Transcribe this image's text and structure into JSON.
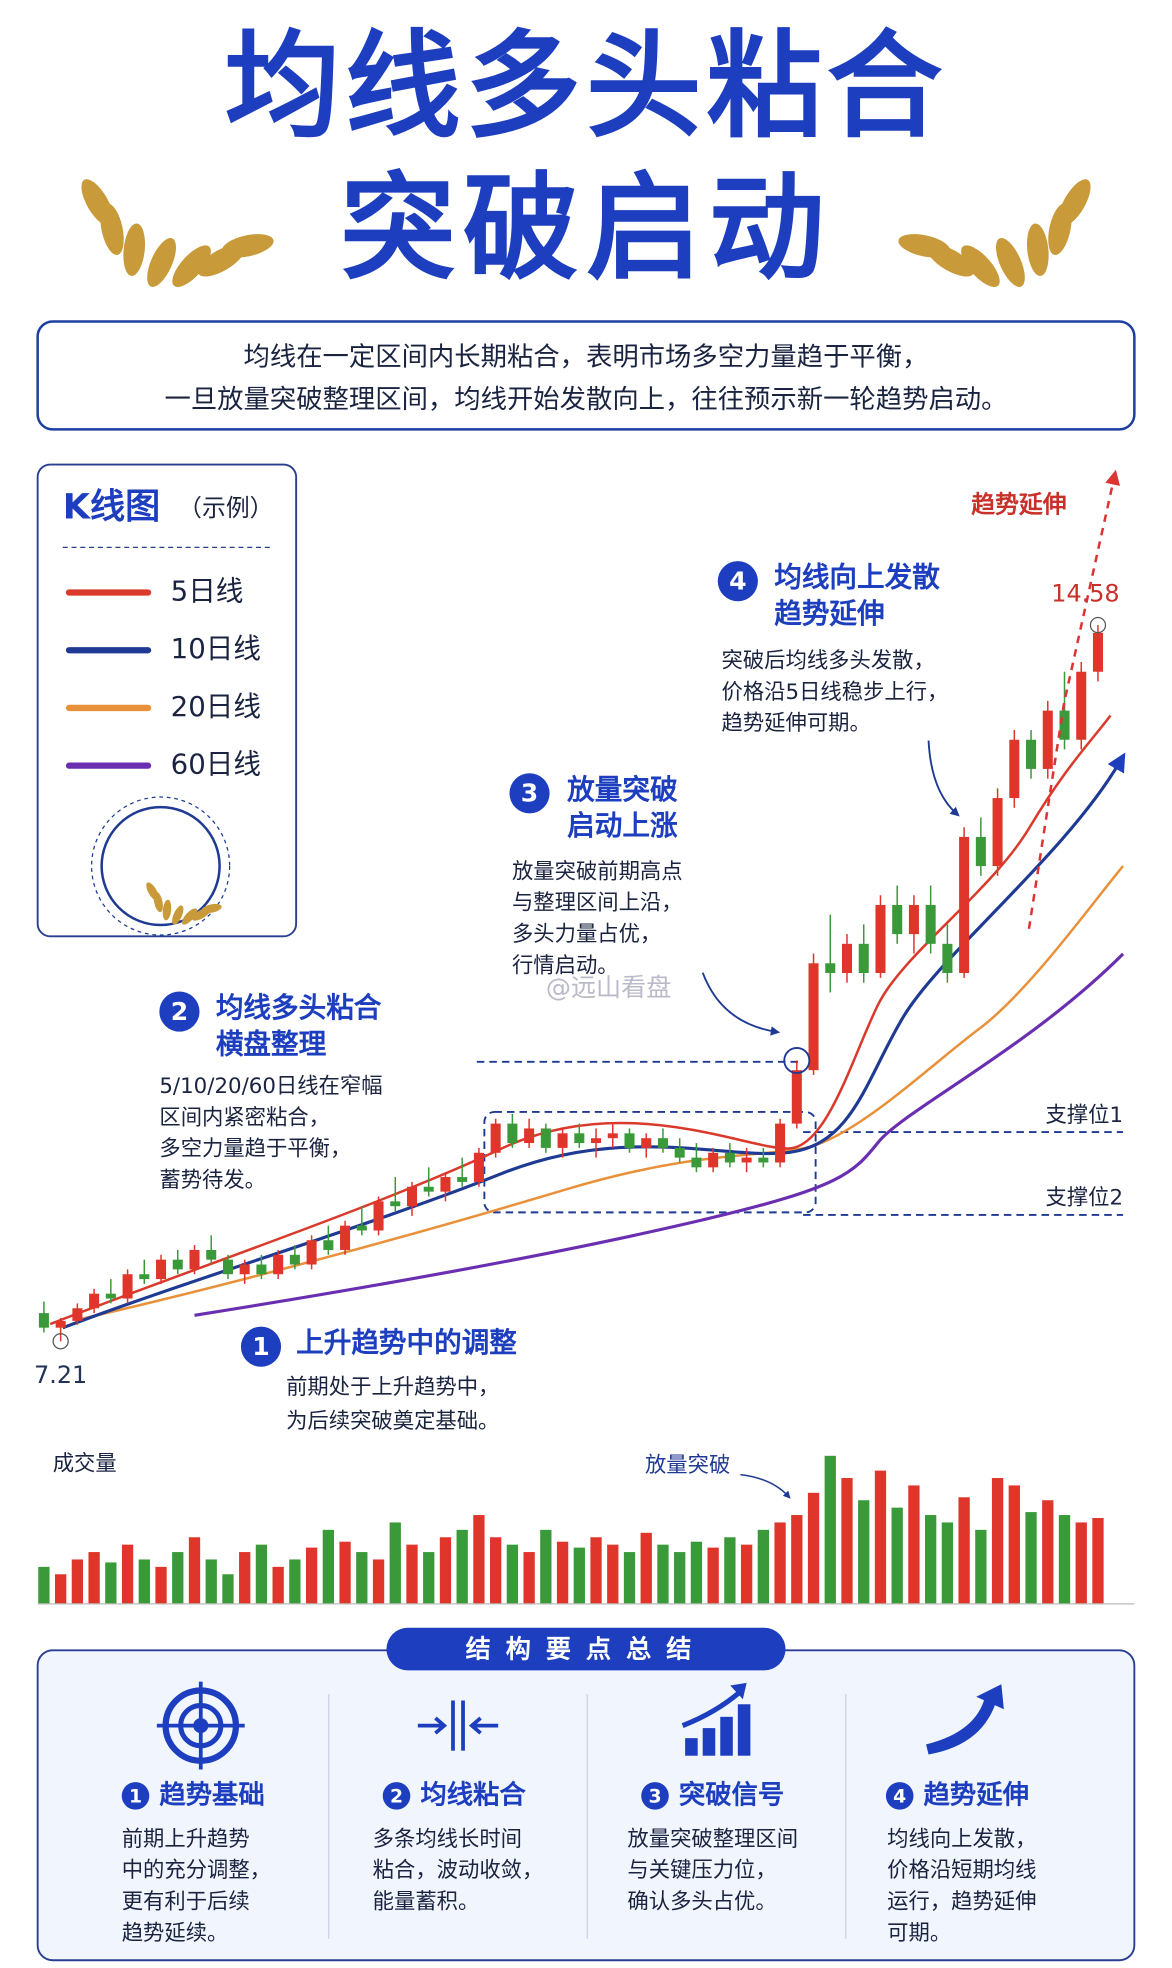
{
  "title": {
    "line1": "均线多头粘合",
    "line2": "突破启动"
  },
  "intro": [
    "均线在一定区间内长期粘合，表明市场多空力量趋于平衡，",
    "一旦放量突破整理区间，均线开始发散向上，往往预示新一轮趋势启动。"
  ],
  "legend": {
    "title": "K线图",
    "subtitle": "（示例）",
    "items": [
      {
        "name": "5日线",
        "color": "#d93a2b"
      },
      {
        "name": "10日线",
        "color": "#1f3a93"
      },
      {
        "name": "20日线",
        "color": "#e8913a"
      },
      {
        "name": "60日线",
        "color": "#6a2fb0"
      }
    ]
  },
  "steps": [
    {
      "num": 1,
      "title": [
        "上升趋势中的调整"
      ],
      "body": [
        "前期处于上升趋势中，",
        "为后续突破奠定基础。"
      ]
    },
    {
      "num": 2,
      "title": [
        "均线多头粘合",
        "横盘整理"
      ],
      "body": [
        "5/10/20/60日线在窄幅",
        "区间内紧密粘合，",
        "多空力量趋于平衡，",
        "蓄势待发。"
      ]
    },
    {
      "num": 3,
      "title": [
        "放量突破",
        "启动上涨"
      ],
      "body": [
        "放量突破前期高点",
        "与整理区间上沿，",
        "多头力量占优，",
        "行情启动。"
      ]
    },
    {
      "num": 4,
      "title": [
        "均线向上发散",
        "趋势延伸"
      ],
      "body": [
        "突破后均线多头发散，",
        "价格沿5日线稳步上行，",
        "趋势延伸可期。"
      ]
    }
  ],
  "chart_data": {
    "type": "candlestick",
    "ylim": [
      7,
      16
    ],
    "up_color": "#e0352b",
    "down_color": "#3a9a3a",
    "candles": [
      [
        7.5,
        7.62,
        7.3,
        7.35
      ],
      [
        7.35,
        7.45,
        7.21,
        7.42
      ],
      [
        7.42,
        7.6,
        7.38,
        7.55
      ],
      [
        7.55,
        7.75,
        7.5,
        7.7
      ],
      [
        7.7,
        7.85,
        7.6,
        7.65
      ],
      [
        7.65,
        7.95,
        7.6,
        7.9
      ],
      [
        7.9,
        8.05,
        7.8,
        7.85
      ],
      [
        7.85,
        8.1,
        7.8,
        8.05
      ],
      [
        8.05,
        8.15,
        7.9,
        7.95
      ],
      [
        7.95,
        8.2,
        7.9,
        8.15
      ],
      [
        8.15,
        8.3,
        8.0,
        8.05
      ],
      [
        8.05,
        8.1,
        7.85,
        7.9
      ],
      [
        7.9,
        8.05,
        7.8,
        8.0
      ],
      [
        8.0,
        8.1,
        7.85,
        7.9
      ],
      [
        7.9,
        8.15,
        7.85,
        8.1
      ],
      [
        8.1,
        8.2,
        7.95,
        8.0
      ],
      [
        8.0,
        8.3,
        7.95,
        8.25
      ],
      [
        8.25,
        8.4,
        8.1,
        8.15
      ],
      [
        8.15,
        8.45,
        8.1,
        8.4
      ],
      [
        8.4,
        8.6,
        8.3,
        8.35
      ],
      [
        8.35,
        8.7,
        8.3,
        8.65
      ],
      [
        8.65,
        8.9,
        8.55,
        8.6
      ],
      [
        8.6,
        8.85,
        8.5,
        8.8
      ],
      [
        8.8,
        9.0,
        8.7,
        8.75
      ],
      [
        8.75,
        8.95,
        8.65,
        8.9
      ],
      [
        8.9,
        9.1,
        8.8,
        8.85
      ],
      [
        8.85,
        9.2,
        8.8,
        9.15
      ],
      [
        9.15,
        9.5,
        9.1,
        9.45
      ],
      [
        9.45,
        9.55,
        9.2,
        9.25
      ],
      [
        9.25,
        9.5,
        9.2,
        9.4
      ],
      [
        9.4,
        9.45,
        9.15,
        9.2
      ],
      [
        9.2,
        9.4,
        9.1,
        9.35
      ],
      [
        9.35,
        9.45,
        9.2,
        9.25
      ],
      [
        9.25,
        9.4,
        9.1,
        9.3
      ],
      [
        9.3,
        9.45,
        9.2,
        9.35
      ],
      [
        9.35,
        9.4,
        9.15,
        9.2
      ],
      [
        9.2,
        9.35,
        9.1,
        9.3
      ],
      [
        9.3,
        9.4,
        9.15,
        9.2
      ],
      [
        9.2,
        9.3,
        9.05,
        9.1
      ],
      [
        9.1,
        9.25,
        8.95,
        9.0
      ],
      [
        9.0,
        9.2,
        8.95,
        9.15
      ],
      [
        9.15,
        9.25,
        9.0,
        9.05
      ],
      [
        9.05,
        9.2,
        8.95,
        9.1
      ],
      [
        9.1,
        9.2,
        9.0,
        9.05
      ],
      [
        9.05,
        9.5,
        9.0,
        9.45
      ],
      [
        9.45,
        10.1,
        9.4,
        10.0
      ],
      [
        10.0,
        11.2,
        9.95,
        11.1
      ],
      [
        11.1,
        11.6,
        10.8,
        11.0
      ],
      [
        11.0,
        11.4,
        10.9,
        11.3
      ],
      [
        11.3,
        11.5,
        10.9,
        11.0
      ],
      [
        11.0,
        11.8,
        10.95,
        11.7
      ],
      [
        11.7,
        11.9,
        11.3,
        11.4
      ],
      [
        11.4,
        11.8,
        11.2,
        11.7
      ],
      [
        11.7,
        11.9,
        11.2,
        11.3
      ],
      [
        11.3,
        11.5,
        10.9,
        11.0
      ],
      [
        11.0,
        12.5,
        10.95,
        12.4
      ],
      [
        12.4,
        12.6,
        12.0,
        12.1
      ],
      [
        12.1,
        12.9,
        12.0,
        12.8
      ],
      [
        12.8,
        13.5,
        12.7,
        13.4
      ],
      [
        13.4,
        13.5,
        13.0,
        13.1
      ],
      [
        13.1,
        13.8,
        13.0,
        13.7
      ],
      [
        13.7,
        14.1,
        13.3,
        13.4
      ],
      [
        13.4,
        14.2,
        13.3,
        14.1
      ],
      [
        14.1,
        14.58,
        14.0,
        14.5
      ]
    ],
    "volume_label": "成交量",
    "vlim": [
      0,
      100
    ],
    "volume": [
      25,
      20,
      30,
      35,
      28,
      40,
      30,
      25,
      35,
      45,
      30,
      20,
      35,
      40,
      25,
      30,
      38,
      50,
      42,
      35,
      30,
      55,
      40,
      35,
      45,
      50,
      60,
      45,
      40,
      35,
      50,
      42,
      38,
      45,
      40,
      35,
      48,
      40,
      35,
      42,
      38,
      45,
      40,
      50,
      55,
      60,
      75,
      100,
      85,
      70,
      90,
      65,
      80,
      60,
      55,
      72,
      50,
      85,
      80,
      62,
      70,
      60,
      55,
      58
    ]
  },
  "annotations": {
    "trend": "趋势延伸",
    "support1": "支撑位1",
    "support2": "支撑位2",
    "volume_breakout": "放量突破"
  },
  "watermark": "@远山看盘",
  "summary": {
    "title": "结构要点总结",
    "items": [
      {
        "num": 1,
        "title": "趋势基础",
        "body": [
          "前期上升趋势",
          "中的充分调整，",
          "更有利于后续",
          "趋势延续。"
        ]
      },
      {
        "num": 2,
        "title": "均线粘合",
        "body": [
          "多条均线长时间",
          "粘合，波动收敛，",
          "能量蓄积。"
        ]
      },
      {
        "num": 3,
        "title": "突破信号",
        "body": [
          "放量突破整理区间",
          "与关键压力位，",
          "确认多头占优。"
        ]
      },
      {
        "num": 4,
        "title": "趋势延伸",
        "body": [
          "均线向上发散，",
          "价格沿短期均线",
          "运行，趋势延伸",
          "可期。"
        ]
      }
    ]
  }
}
